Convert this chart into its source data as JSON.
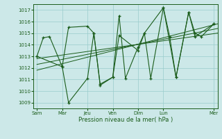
{
  "bg_color": "#cce8e8",
  "grid_color": "#99cccc",
  "line_color": "#1a5c1a",
  "xlabel": "Pression niveau de la mer( hPa )",
  "ylim": [
    1008.5,
    1017.5
  ],
  "yticks": [
    1009,
    1010,
    1011,
    1012,
    1013,
    1014,
    1015,
    1016,
    1017
  ],
  "x_day_labels": [
    "Sam",
    "Mar",
    "Jeu",
    "Ven",
    "Dim",
    "Lun",
    "Mer"
  ],
  "x_day_positions": [
    0,
    28,
    56,
    84,
    112,
    140,
    196
  ],
  "xlim": [
    -4,
    200
  ],
  "s1_x": [
    0,
    7,
    14,
    28,
    35,
    56,
    63,
    70,
    84,
    91,
    98,
    112,
    119,
    126,
    140,
    147,
    154,
    168,
    175,
    182,
    196
  ],
  "s1_y": [
    1013.0,
    1014.6,
    1014.7,
    1012.1,
    1015.5,
    1015.6,
    1015.0,
    1010.6,
    1011.2,
    1016.5,
    1011.1,
    1013.8,
    1015.0,
    1011.1,
    1017.2,
    1014.7,
    1011.2,
    1016.8,
    1015.0,
    1014.7,
    1015.8
  ],
  "s2_x": [
    0,
    28,
    35,
    56,
    63,
    70,
    84,
    91,
    112,
    119,
    140,
    154,
    168,
    175,
    196
  ],
  "s2_y": [
    1013.0,
    1012.1,
    1009.0,
    1011.1,
    1015.0,
    1010.5,
    1011.2,
    1014.8,
    1013.5,
    1015.0,
    1017.2,
    1011.2,
    1016.8,
    1014.7,
    1015.8
  ],
  "trend1_x": [
    0,
    200
  ],
  "trend1_y": [
    1011.8,
    1015.8
  ],
  "trend2_x": [
    0,
    200
  ],
  "trend2_y": [
    1012.3,
    1015.4
  ],
  "trend3_x": [
    0,
    200
  ],
  "trend3_y": [
    1012.8,
    1015.0
  ]
}
